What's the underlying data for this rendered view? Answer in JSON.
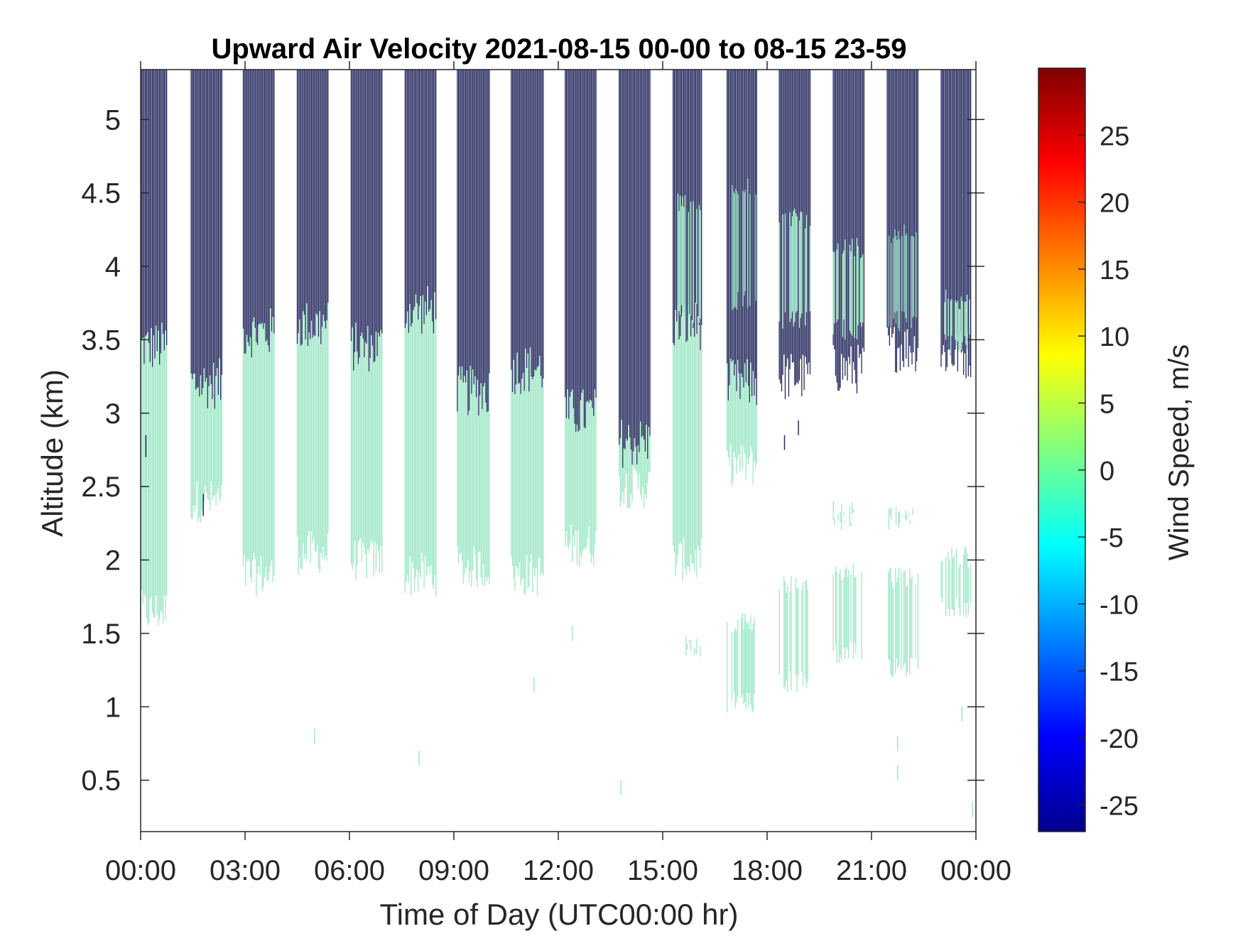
{
  "chart_data": {
    "type": "heatmap",
    "title": "Upward Air Velocity 2021-08-15 00-00 to 08-15 23-59",
    "xlabel": "Time of Day (UTC00:00 hr)",
    "ylabel": "Altitude (km)",
    "xlim_hours": [
      0,
      24
    ],
    "ylim_km": [
      0.15,
      5.34
    ],
    "x_ticks": [
      {
        "hours": 0,
        "label": "00:00"
      },
      {
        "hours": 3,
        "label": "03:00"
      },
      {
        "hours": 6,
        "label": "06:00"
      },
      {
        "hours": 9,
        "label": "09:00"
      },
      {
        "hours": 12,
        "label": "12:00"
      },
      {
        "hours": 15,
        "label": "15:00"
      },
      {
        "hours": 18,
        "label": "18:00"
      },
      {
        "hours": 21,
        "label": "21:00"
      },
      {
        "hours": 24,
        "label": "00:00"
      }
    ],
    "y_ticks": [
      {
        "km": 0.5,
        "label": "0.5"
      },
      {
        "km": 1,
        "label": "1"
      },
      {
        "km": 1.5,
        "label": "1.5"
      },
      {
        "km": 2,
        "label": "2"
      },
      {
        "km": 2.5,
        "label": "2.5"
      },
      {
        "km": 3,
        "label": "3"
      },
      {
        "km": 3.5,
        "label": "3.5"
      },
      {
        "km": 4,
        "label": "4"
      },
      {
        "km": 4.5,
        "label": "4.5"
      },
      {
        "km": 5,
        "label": "5"
      }
    ],
    "grid": false,
    "colorbar": {
      "label": "Wind Speed, m/s",
      "range": [
        -27,
        30
      ],
      "colormap": "jet",
      "ticks": [
        {
          "value": 25,
          "label": "25"
        },
        {
          "value": 20,
          "label": "20"
        },
        {
          "value": 15,
          "label": "15"
        },
        {
          "value": 10,
          "label": "10"
        },
        {
          "value": 5,
          "label": "5"
        },
        {
          "value": 0,
          "label": "0"
        },
        {
          "value": -5,
          "label": "-5"
        },
        {
          "value": -10,
          "label": "-10"
        },
        {
          "value": -15,
          "label": "-15"
        },
        {
          "value": -20,
          "label": "-20"
        },
        {
          "value": -25,
          "label": "-25"
        }
      ],
      "colors": [
        "#00008f",
        "#0000ff",
        "#0080ff",
        "#00ffff",
        "#80ff80",
        "#ffff00",
        "#ff8000",
        "#ff0000",
        "#800000"
      ]
    },
    "observation_blocks": [
      {
        "start_hr": 0.0,
        "end_hr": 0.75,
        "lower_vel": -1.5,
        "upper_vel": -27,
        "low_km": 1.5,
        "trans_km": 3.45,
        "top_km": 5.34
      },
      {
        "start_hr": 1.45,
        "end_hr": 2.35,
        "lower_vel": -1.5,
        "upper_vel": -27,
        "low_km": 2.25,
        "trans_km": 3.2,
        "top_km": 5.34
      },
      {
        "start_hr": 2.95,
        "end_hr": 3.85,
        "lower_vel": -1.5,
        "upper_vel": -27,
        "low_km": 1.75,
        "trans_km": 3.55,
        "top_km": 5.34
      },
      {
        "start_hr": 4.5,
        "end_hr": 5.4,
        "lower_vel": -1.5,
        "upper_vel": -27,
        "low_km": 1.9,
        "trans_km": 3.6,
        "top_km": 5.34
      },
      {
        "start_hr": 6.05,
        "end_hr": 6.95,
        "lower_vel": -1.5,
        "upper_vel": -27,
        "low_km": 1.85,
        "trans_km": 3.45,
        "top_km": 5.34
      },
      {
        "start_hr": 7.6,
        "end_hr": 8.5,
        "lower_vel": -1.5,
        "upper_vel": -27,
        "low_km": 1.75,
        "trans_km": 3.7,
        "top_km": 5.34
      },
      {
        "start_hr": 9.1,
        "end_hr": 10.05,
        "lower_vel": -1.5,
        "upper_vel": -27,
        "low_km": 1.8,
        "trans_km": 3.15,
        "top_km": 5.34
      },
      {
        "start_hr": 10.65,
        "end_hr": 11.6,
        "lower_vel": -1.5,
        "upper_vel": -27,
        "low_km": 1.75,
        "trans_km": 3.3,
        "top_km": 5.34
      },
      {
        "start_hr": 12.2,
        "end_hr": 13.1,
        "lower_vel": -1.5,
        "upper_vel": -27,
        "low_km": 1.95,
        "trans_km": 3.0,
        "top_km": 5.34
      },
      {
        "start_hr": 13.75,
        "end_hr": 14.65,
        "lower_vel": -1.5,
        "upper_vel": -27,
        "low_km": 2.35,
        "trans_km": 2.8,
        "top_km": 5.34
      },
      {
        "start_hr": 15.3,
        "end_hr": 16.15,
        "lower_vel": -1.5,
        "upper_vel": -27,
        "low_km": 1.85,
        "trans_km": 3.6,
        "top_km": 5.34
      },
      {
        "start_hr": 16.85,
        "end_hr": 17.7,
        "lower_vel": -1.5,
        "upper_vel": -27,
        "low_km": 2.5,
        "trans_km": 3.2,
        "top_km": 5.34
      },
      {
        "start_hr": 18.35,
        "end_hr": 19.25,
        "lower_vel": -1.5,
        "upper_vel": -27,
        "low_km": 3.25,
        "trans_km": 3.25,
        "top_km": 5.34
      },
      {
        "start_hr": 19.9,
        "end_hr": 20.8,
        "lower_vel": -1.5,
        "upper_vel": -27,
        "low_km": 3.3,
        "trans_km": 3.3,
        "top_km": 5.34
      },
      {
        "start_hr": 21.45,
        "end_hr": 22.35,
        "lower_vel": -1.5,
        "upper_vel": -27,
        "low_km": 3.45,
        "trans_km": 3.45,
        "top_km": 5.34
      },
      {
        "start_hr": 23.0,
        "end_hr": 23.85,
        "lower_vel": -1.5,
        "upper_vel": -27,
        "low_km": 3.4,
        "trans_km": 3.4,
        "top_km": 5.34
      }
    ],
    "patches": [
      {
        "start_hr": 17.0,
        "end_hr": 17.7,
        "low_km": 3.7,
        "high_km": 4.6,
        "vel": -1.5
      },
      {
        "start_hr": 18.35,
        "end_hr": 19.25,
        "low_km": 3.55,
        "high_km": 4.4,
        "vel": -1.5
      },
      {
        "start_hr": 19.9,
        "end_hr": 20.8,
        "low_km": 3.5,
        "high_km": 4.2,
        "vel": -1.5
      },
      {
        "start_hr": 21.5,
        "end_hr": 22.3,
        "low_km": 3.55,
        "high_km": 4.3,
        "vel": -1.5
      },
      {
        "start_hr": 23.1,
        "end_hr": 23.85,
        "low_km": 3.4,
        "high_km": 3.85,
        "vel": -1.5
      },
      {
        "start_hr": 15.4,
        "end_hr": 16.1,
        "low_km": 3.6,
        "high_km": 4.5,
        "vel": -1.5
      },
      {
        "start_hr": 16.85,
        "end_hr": 17.65,
        "low_km": 0.95,
        "high_km": 1.65,
        "vel": -1.5
      },
      {
        "start_hr": 18.35,
        "end_hr": 19.25,
        "low_km": 1.1,
        "high_km": 1.9,
        "vel": -1.5
      },
      {
        "start_hr": 19.9,
        "end_hr": 20.8,
        "low_km": 1.3,
        "high_km": 2.0,
        "vel": -1.5
      },
      {
        "start_hr": 21.45,
        "end_hr": 22.35,
        "low_km": 1.2,
        "high_km": 1.95,
        "vel": -1.5
      },
      {
        "start_hr": 23.0,
        "end_hr": 23.85,
        "low_km": 1.6,
        "high_km": 2.1,
        "vel": -1.5
      },
      {
        "start_hr": 19.9,
        "end_hr": 20.5,
        "low_km": 2.2,
        "high_km": 2.4,
        "vel": -1.5
      },
      {
        "start_hr": 21.5,
        "end_hr": 22.2,
        "low_km": 2.2,
        "high_km": 2.4,
        "vel": -1.5
      },
      {
        "start_hr": 15.5,
        "end_hr": 16.1,
        "low_km": 1.3,
        "high_km": 1.5,
        "vel": -1.5
      }
    ],
    "speckles": [
      {
        "hr": 0.15,
        "low_km": 2.7,
        "high_km": 2.85,
        "vel": -27
      },
      {
        "hr": 1.8,
        "low_km": 2.3,
        "high_km": 2.45,
        "vel": -27
      },
      {
        "hr": 5.0,
        "low_km": 0.75,
        "high_km": 0.85,
        "vel": -1.5
      },
      {
        "hr": 8.0,
        "low_km": 0.6,
        "high_km": 0.7,
        "vel": -1.5
      },
      {
        "hr": 11.3,
        "low_km": 1.1,
        "high_km": 1.2,
        "vel": -1.5
      },
      {
        "hr": 12.4,
        "low_km": 1.45,
        "high_km": 1.55,
        "vel": -1.5
      },
      {
        "hr": 13.8,
        "low_km": 0.4,
        "high_km": 0.5,
        "vel": -1.5
      },
      {
        "hr": 23.6,
        "low_km": 0.9,
        "high_km": 1.0,
        "vel": -1.5
      },
      {
        "hr": 21.75,
        "low_km": 0.7,
        "high_km": 0.8,
        "vel": -1.5
      },
      {
        "hr": 21.75,
        "low_km": 0.5,
        "high_km": 0.6,
        "vel": -1.5
      },
      {
        "hr": 23.9,
        "low_km": 0.25,
        "high_km": 0.35,
        "vel": -1.5
      },
      {
        "hr": 18.5,
        "low_km": 2.75,
        "high_km": 2.85,
        "vel": -27
      },
      {
        "hr": 18.9,
        "low_km": 2.85,
        "high_km": 2.95,
        "vel": -27
      }
    ]
  }
}
